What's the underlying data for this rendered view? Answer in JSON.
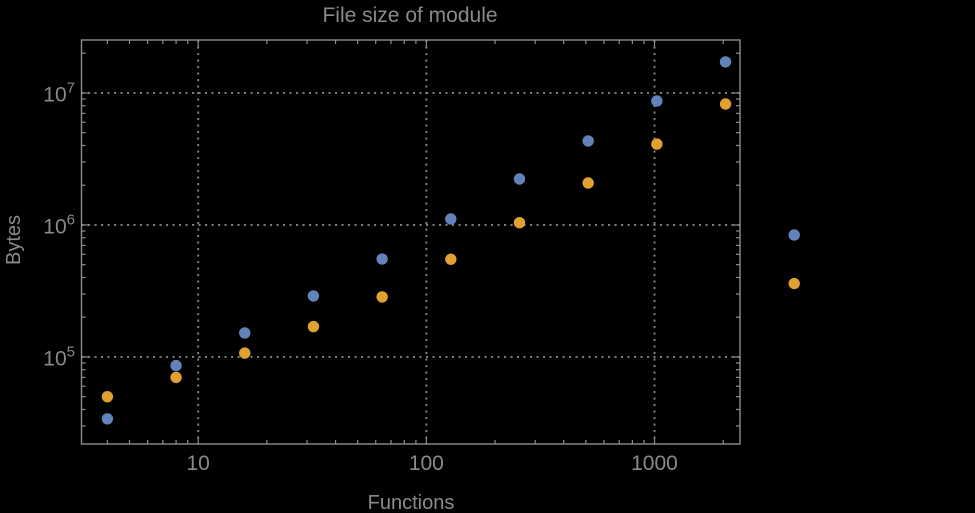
{
  "colors": {
    "background": "#000000",
    "frame": "#8f8f8f",
    "grid": "#838383",
    "text": "#8a8a8a",
    "series_blue": "#6282ba",
    "series_orange": "#e2a030"
  },
  "chart_data": {
    "type": "scatter",
    "title": "File size of module",
    "xlabel": "Functions",
    "ylabel": "Bytes",
    "x_scale": "log",
    "y_scale": "log",
    "xlim": [
      3.08,
      2370
    ],
    "ylim": [
      21900,
      25200000
    ],
    "grid": {
      "show": true,
      "style": "dotted",
      "on": "major-decades"
    },
    "legend": {
      "visible": false
    },
    "x_major_ticks": [
      10,
      100,
      1000
    ],
    "x_tick_labels": [
      "10",
      "100",
      "1000"
    ],
    "y_major_ticks": [
      100000,
      1000000,
      10000000
    ],
    "y_tick_labels": [
      {
        "base": "10",
        "exp": "5"
      },
      {
        "base": "10",
        "exp": "6"
      },
      {
        "base": "10",
        "exp": "7"
      }
    ],
    "marker_radius": 5.7,
    "series": [
      {
        "name": "series-1-blue",
        "color": "#6282ba",
        "marker": "circle",
        "x": [
          4,
          8,
          16,
          32,
          64,
          128,
          256,
          512,
          1024,
          2048,
          4096
        ],
        "y": [
          34000,
          86000,
          152000,
          290000,
          552000,
          1110000,
          2230000,
          4330000,
          8700000,
          17200000,
          840000
        ]
      },
      {
        "name": "series-2-orange",
        "color": "#e2a030",
        "marker": "circle",
        "x": [
          4,
          8,
          16,
          32,
          64,
          128,
          256,
          512,
          1024,
          2048,
          4096
        ],
        "y": [
          50000,
          70000,
          107000,
          170000,
          285000,
          550000,
          1040000,
          2080000,
          4100000,
          8250000,
          360000
        ]
      }
    ]
  }
}
